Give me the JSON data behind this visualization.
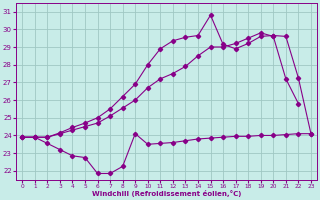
{
  "xlabel": "Windchill (Refroidissement éolien,°C)",
  "xlim": [
    -0.5,
    23.5
  ],
  "ylim": [
    21.5,
    31.5
  ],
  "yticks": [
    22,
    23,
    24,
    25,
    26,
    27,
    28,
    29,
    30,
    31
  ],
  "xticks": [
    0,
    1,
    2,
    3,
    4,
    5,
    6,
    7,
    8,
    9,
    10,
    11,
    12,
    13,
    14,
    15,
    16,
    17,
    18,
    19,
    20,
    21,
    22,
    23
  ],
  "bg_color": "#c8ece8",
  "grid_color": "#a0c8c4",
  "line_color": "#880088",
  "line1_x": [
    0,
    1,
    2,
    3,
    4,
    5,
    6,
    7,
    8,
    9,
    10,
    11,
    12,
    13,
    14,
    15,
    16,
    17,
    18,
    19,
    20,
    21,
    22,
    23
  ],
  "line1_y": [
    23.9,
    23.9,
    23.55,
    23.2,
    22.85,
    22.75,
    21.85,
    21.85,
    22.25,
    24.1,
    23.5,
    23.55,
    23.6,
    23.7,
    23.8,
    23.85,
    23.9,
    23.95,
    23.95,
    24.0,
    24.0,
    24.05,
    24.1,
    24.1
  ],
  "line2_x": [
    0,
    1,
    2,
    3,
    4,
    5,
    6,
    7,
    8,
    9,
    10,
    11,
    12,
    13,
    14,
    15,
    16,
    17,
    18,
    19,
    20,
    21,
    22,
    23
  ],
  "line2_y": [
    23.9,
    23.9,
    23.9,
    24.1,
    24.3,
    24.5,
    24.7,
    25.1,
    25.55,
    26.0,
    26.7,
    27.2,
    27.5,
    27.9,
    28.5,
    29.0,
    29.0,
    29.2,
    29.5,
    29.8,
    29.6,
    27.2,
    25.8,
    null
  ],
  "line3_x": [
    0,
    1,
    2,
    3,
    4,
    5,
    6,
    7,
    8,
    9,
    10,
    11,
    12,
    13,
    14,
    15,
    16,
    17,
    18,
    19,
    20,
    21,
    22,
    23
  ],
  "line3_y": [
    23.9,
    23.9,
    23.9,
    24.15,
    24.45,
    24.7,
    25.0,
    25.5,
    26.2,
    26.9,
    28.0,
    28.9,
    29.35,
    29.55,
    29.65,
    30.8,
    29.15,
    28.9,
    29.2,
    29.6,
    29.65,
    29.6,
    27.25,
    24.1
  ]
}
